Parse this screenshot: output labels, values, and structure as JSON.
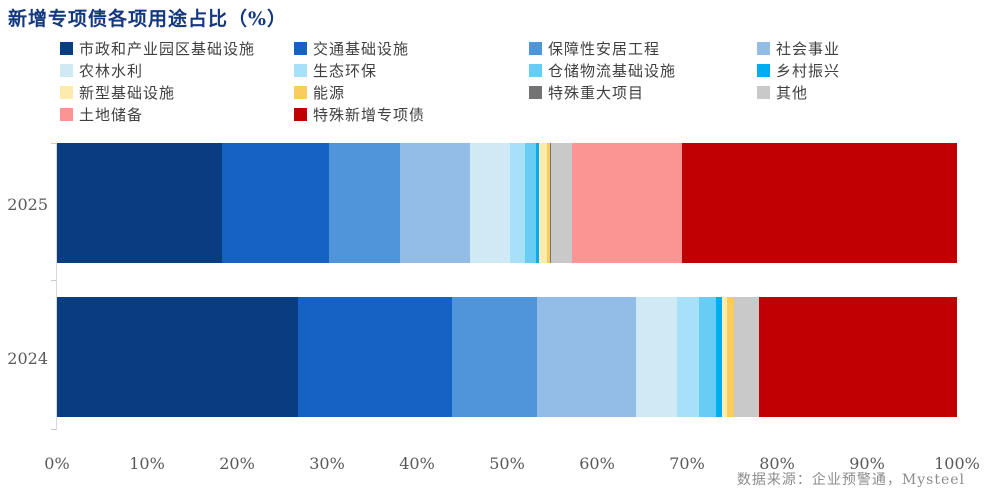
{
  "title": "新增专项债各项用途占比（%）",
  "source": "数据来源：企业预警通，Mysteel",
  "colors": {
    "title_text": "#14387F",
    "axis_text": "#595959",
    "legend_text": "#404040",
    "source_text": "#8C8C8C",
    "axis_line": "#D9D9D9"
  },
  "chart_data": {
    "type": "bar",
    "orientation": "horizontal",
    "stacked": true,
    "unit": "%",
    "title": "新增专项债各项用途占比（%）",
    "xlim": [
      0,
      100
    ],
    "grid": false,
    "legend_position": "top",
    "x_ticks": [
      "0%",
      "10%",
      "20%",
      "30%",
      "40%",
      "50%",
      "60%",
      "70%",
      "80%",
      "90%",
      "100%"
    ],
    "categories": [
      "2025",
      "2024"
    ],
    "series": [
      {
        "name": "市政和产业园区基础设施",
        "color": "#083D82",
        "values": [
          18.3,
          26.8
        ]
      },
      {
        "name": "交通基础设施",
        "color": "#1561C4",
        "values": [
          11.9,
          17.1
        ]
      },
      {
        "name": "保障性安居工程",
        "color": "#4E95D9",
        "values": [
          7.9,
          9.4
        ]
      },
      {
        "name": "社会事业",
        "color": "#93BCE6",
        "values": [
          7.8,
          11.0
        ]
      },
      {
        "name": "农林水利",
        "color": "#CFE9F5",
        "values": [
          4.4,
          4.6
        ]
      },
      {
        "name": "生态环保",
        "color": "#A8E0FA",
        "values": [
          1.7,
          2.4
        ]
      },
      {
        "name": "仓储物流基础设施",
        "color": "#67CDF5",
        "values": [
          1.2,
          1.9
        ]
      },
      {
        "name": "乡村振兴",
        "color": "#00AEEF",
        "values": [
          0.4,
          0.7
        ]
      },
      {
        "name": "新型基础设施",
        "color": "#FDEBAD",
        "values": [
          0.8,
          0.6
        ]
      },
      {
        "name": "能源",
        "color": "#FACC5E",
        "values": [
          0.4,
          0.7
        ]
      },
      {
        "name": "特殊重大项目",
        "color": "#737373",
        "values": [
          0.1,
          0.0
        ]
      },
      {
        "name": "其他",
        "color": "#C9C9C9",
        "values": [
          2.3,
          2.8
        ]
      },
      {
        "name": "土地储备",
        "color": "#FB9594",
        "values": [
          12.3,
          0.0
        ]
      },
      {
        "name": "特殊新增专项债",
        "color": "#C00000",
        "values": [
          30.5,
          22.0
        ]
      }
    ]
  }
}
